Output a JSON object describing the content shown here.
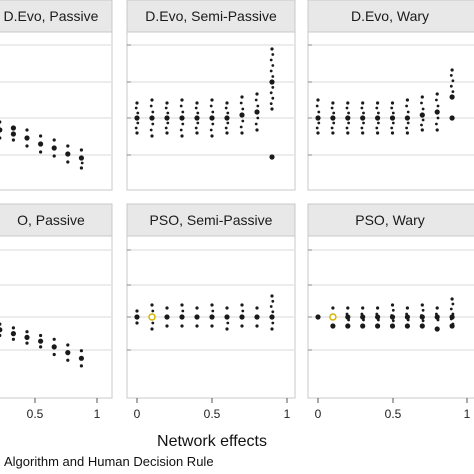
{
  "chart_data": {
    "type": "scatter",
    "xlabel": "Network effects",
    "caption": "Algorithm and Human Decision Rule",
    "x_ticks": [
      "0.5",
      "1",
      "0",
      "0.5",
      "1",
      "0",
      "0.5",
      "1"
    ],
    "colors": {
      "header": "#e8e8e8",
      "marker": "#1a1a1a",
      "highlight": "#d6b400",
      "grid": "#d9d9d9"
    },
    "panels": [
      {
        "title": "D.Evo, Passive",
        "points": [
          {
            "x": 0.2,
            "y": 0.0
          },
          {
            "x": 0.2,
            "y": 0.3
          },
          {
            "x": 0.2,
            "y": -0.3
          },
          {
            "x": 0.3,
            "y": -0.1
          },
          {
            "x": 0.3,
            "y": -0.5
          },
          {
            "x": 0.3,
            "y": 0.3
          },
          {
            "x": 0.4,
            "y": -0.3
          },
          {
            "x": 0.4,
            "y": -0.6
          },
          {
            "x": 0.4,
            "y": 0.0
          },
          {
            "x": 0.5,
            "y": -0.5
          },
          {
            "x": 0.5,
            "y": -0.9
          },
          {
            "x": 0.5,
            "y": -0.1
          },
          {
            "x": 0.6,
            "y": -0.8
          },
          {
            "x": 0.6,
            "y": -1.2
          },
          {
            "x": 0.6,
            "y": -0.4
          },
          {
            "x": 0.7,
            "y": -1.0
          },
          {
            "x": 0.7,
            "y": -1.4
          },
          {
            "x": 0.7,
            "y": -0.6
          },
          {
            "x": 0.8,
            "y": -1.3
          },
          {
            "x": 0.8,
            "y": -1.7
          },
          {
            "x": 0.8,
            "y": -0.9
          },
          {
            "x": 0.9,
            "y": -1.5
          },
          {
            "x": 0.9,
            "y": -2.0
          },
          {
            "x": 0.9,
            "y": -1.1
          }
        ]
      },
      {
        "title": "D.Evo, Semi-Passive",
        "points": [
          {
            "x": 0.0,
            "y": 0.0
          },
          {
            "x": 0.0,
            "y": 0.5
          },
          {
            "x": 0.0,
            "y": -0.5
          },
          {
            "x": 0.1,
            "y": 0.0
          },
          {
            "x": 0.1,
            "y": 0.6
          },
          {
            "x": 0.1,
            "y": -0.6
          },
          {
            "x": 0.2,
            "y": 0.0
          },
          {
            "x": 0.2,
            "y": 0.5
          },
          {
            "x": 0.2,
            "y": -0.5
          },
          {
            "x": 0.3,
            "y": 0.0
          },
          {
            "x": 0.3,
            "y": 0.6
          },
          {
            "x": 0.3,
            "y": -0.6
          },
          {
            "x": 0.4,
            "y": 0.0
          },
          {
            "x": 0.4,
            "y": 0.5
          },
          {
            "x": 0.4,
            "y": -0.5
          },
          {
            "x": 0.5,
            "y": 0.0
          },
          {
            "x": 0.5,
            "y": 0.6
          },
          {
            "x": 0.5,
            "y": -0.6
          },
          {
            "x": 0.6,
            "y": 0.0
          },
          {
            "x": 0.6,
            "y": 0.5
          },
          {
            "x": 0.6,
            "y": -0.5
          },
          {
            "x": 0.7,
            "y": 0.1
          },
          {
            "x": 0.7,
            "y": 0.7
          },
          {
            "x": 0.7,
            "y": -0.5
          },
          {
            "x": 0.8,
            "y": 0.2
          },
          {
            "x": 0.8,
            "y": 0.8
          },
          {
            "x": 0.8,
            "y": -0.4
          },
          {
            "x": 0.9,
            "y": 1.2
          },
          {
            "x": 0.9,
            "y": 2.3
          },
          {
            "x": 0.9,
            "y": 0.3
          },
          {
            "x": 0.9,
            "y": -1.3
          }
        ]
      },
      {
        "title": "D.Evo, Wary",
        "points": [
          {
            "x": 0.0,
            "y": 0.0
          },
          {
            "x": 0.0,
            "y": 0.6
          },
          {
            "x": 0.0,
            "y": -0.5
          },
          {
            "x": 0.1,
            "y": 0.0
          },
          {
            "x": 0.1,
            "y": 0.5
          },
          {
            "x": 0.1,
            "y": -0.5
          },
          {
            "x": 0.2,
            "y": 0.0
          },
          {
            "x": 0.2,
            "y": 0.5
          },
          {
            "x": 0.2,
            "y": -0.5
          },
          {
            "x": 0.3,
            "y": 0.0
          },
          {
            "x": 0.3,
            "y": 0.5
          },
          {
            "x": 0.3,
            "y": -0.5
          },
          {
            "x": 0.4,
            "y": 0.0
          },
          {
            "x": 0.4,
            "y": 0.5
          },
          {
            "x": 0.4,
            "y": -0.5
          },
          {
            "x": 0.5,
            "y": 0.0
          },
          {
            "x": 0.5,
            "y": 0.5
          },
          {
            "x": 0.5,
            "y": -0.5
          },
          {
            "x": 0.6,
            "y": 0.0
          },
          {
            "x": 0.6,
            "y": 0.6
          },
          {
            "x": 0.6,
            "y": -0.5
          },
          {
            "x": 0.7,
            "y": 0.1
          },
          {
            "x": 0.7,
            "y": 0.7
          },
          {
            "x": 0.7,
            "y": -0.4
          },
          {
            "x": 0.8,
            "y": 0.2
          },
          {
            "x": 0.8,
            "y": 0.8
          },
          {
            "x": 0.8,
            "y": -0.4
          },
          {
            "x": 0.9,
            "y": 0.7
          },
          {
            "x": 0.9,
            "y": 1.6
          },
          {
            "x": 0.9,
            "y": 0.0
          }
        ]
      },
      {
        "title": "O, Passive",
        "points": [
          {
            "x": 0.2,
            "y": 0.0
          },
          {
            "x": 0.2,
            "y": 0.3
          },
          {
            "x": 0.2,
            "y": -0.3
          },
          {
            "x": 0.3,
            "y": -0.2
          },
          {
            "x": 0.3,
            "y": 0.1
          },
          {
            "x": 0.3,
            "y": -0.5
          },
          {
            "x": 0.4,
            "y": -0.4
          },
          {
            "x": 0.4,
            "y": -0.1
          },
          {
            "x": 0.4,
            "y": -0.7
          },
          {
            "x": 0.5,
            "y": -0.6
          },
          {
            "x": 0.5,
            "y": -0.3
          },
          {
            "x": 0.5,
            "y": -0.9
          },
          {
            "x": 0.6,
            "y": -0.8
          },
          {
            "x": 0.6,
            "y": -0.5
          },
          {
            "x": 0.6,
            "y": -1.1
          },
          {
            "x": 0.7,
            "y": -1.1
          },
          {
            "x": 0.7,
            "y": -0.7
          },
          {
            "x": 0.7,
            "y": -1.5
          },
          {
            "x": 0.8,
            "y": -1.4
          },
          {
            "x": 0.8,
            "y": -1.0
          },
          {
            "x": 0.8,
            "y": -1.8
          },
          {
            "x": 0.9,
            "y": -1.7
          },
          {
            "x": 0.9,
            "y": -1.3
          },
          {
            "x": 0.9,
            "y": -2.1
          }
        ]
      },
      {
        "title": "PSO, Semi-Passive",
        "points": [
          {
            "x": 0.0,
            "y": 0.0
          },
          {
            "x": 0.0,
            "y": 0.2
          },
          {
            "x": 0.0,
            "y": -0.2
          },
          {
            "x": 0.1,
            "y": 0.0,
            "highlight": true
          },
          {
            "x": 0.1,
            "y": 0.4
          },
          {
            "x": 0.1,
            "y": -0.4
          },
          {
            "x": 0.2,
            "y": 0.0
          },
          {
            "x": 0.2,
            "y": 0.3
          },
          {
            "x": 0.2,
            "y": -0.3
          },
          {
            "x": 0.3,
            "y": 0.0
          },
          {
            "x": 0.3,
            "y": 0.4
          },
          {
            "x": 0.3,
            "y": -0.3
          },
          {
            "x": 0.4,
            "y": 0.0
          },
          {
            "x": 0.4,
            "y": 0.3
          },
          {
            "x": 0.4,
            "y": -0.3
          },
          {
            "x": 0.5,
            "y": 0.0
          },
          {
            "x": 0.5,
            "y": 0.4
          },
          {
            "x": 0.5,
            "y": -0.3
          },
          {
            "x": 0.6,
            "y": 0.0
          },
          {
            "x": 0.6,
            "y": 0.3
          },
          {
            "x": 0.6,
            "y": -0.4
          },
          {
            "x": 0.7,
            "y": 0.0
          },
          {
            "x": 0.7,
            "y": 0.4
          },
          {
            "x": 0.7,
            "y": -0.3
          },
          {
            "x": 0.8,
            "y": 0.0
          },
          {
            "x": 0.8,
            "y": 0.3
          },
          {
            "x": 0.8,
            "y": -0.3
          },
          {
            "x": 0.9,
            "y": 0.0
          },
          {
            "x": 0.9,
            "y": 0.7
          },
          {
            "x": 0.9,
            "y": -0.4
          }
        ]
      },
      {
        "title": "PSO, Wary",
        "points": [
          {
            "x": 0.0,
            "y": 0.0
          },
          {
            "x": 0.1,
            "y": 0.0,
            "highlight": true
          },
          {
            "x": 0.1,
            "y": 0.3
          },
          {
            "x": 0.1,
            "y": -0.3
          },
          {
            "x": 0.2,
            "y": 0.0
          },
          {
            "x": 0.2,
            "y": 0.3
          },
          {
            "x": 0.2,
            "y": -0.3
          },
          {
            "x": 0.3,
            "y": 0.0
          },
          {
            "x": 0.3,
            "y": 0.3
          },
          {
            "x": 0.3,
            "y": -0.3
          },
          {
            "x": 0.4,
            "y": 0.0
          },
          {
            "x": 0.4,
            "y": 0.3
          },
          {
            "x": 0.4,
            "y": -0.3
          },
          {
            "x": 0.5,
            "y": 0.0
          },
          {
            "x": 0.5,
            "y": 0.4
          },
          {
            "x": 0.5,
            "y": -0.3
          },
          {
            "x": 0.6,
            "y": 0.0
          },
          {
            "x": 0.6,
            "y": 0.3
          },
          {
            "x": 0.6,
            "y": -0.3
          },
          {
            "x": 0.7,
            "y": 0.0
          },
          {
            "x": 0.7,
            "y": 0.4
          },
          {
            "x": 0.7,
            "y": -0.3
          },
          {
            "x": 0.8,
            "y": 0.0
          },
          {
            "x": 0.8,
            "y": 0.3
          },
          {
            "x": 0.8,
            "y": -0.4
          },
          {
            "x": 0.9,
            "y": 0.0
          },
          {
            "x": 0.9,
            "y": 0.6
          },
          {
            "x": 0.9,
            "y": -0.3
          }
        ]
      }
    ]
  }
}
